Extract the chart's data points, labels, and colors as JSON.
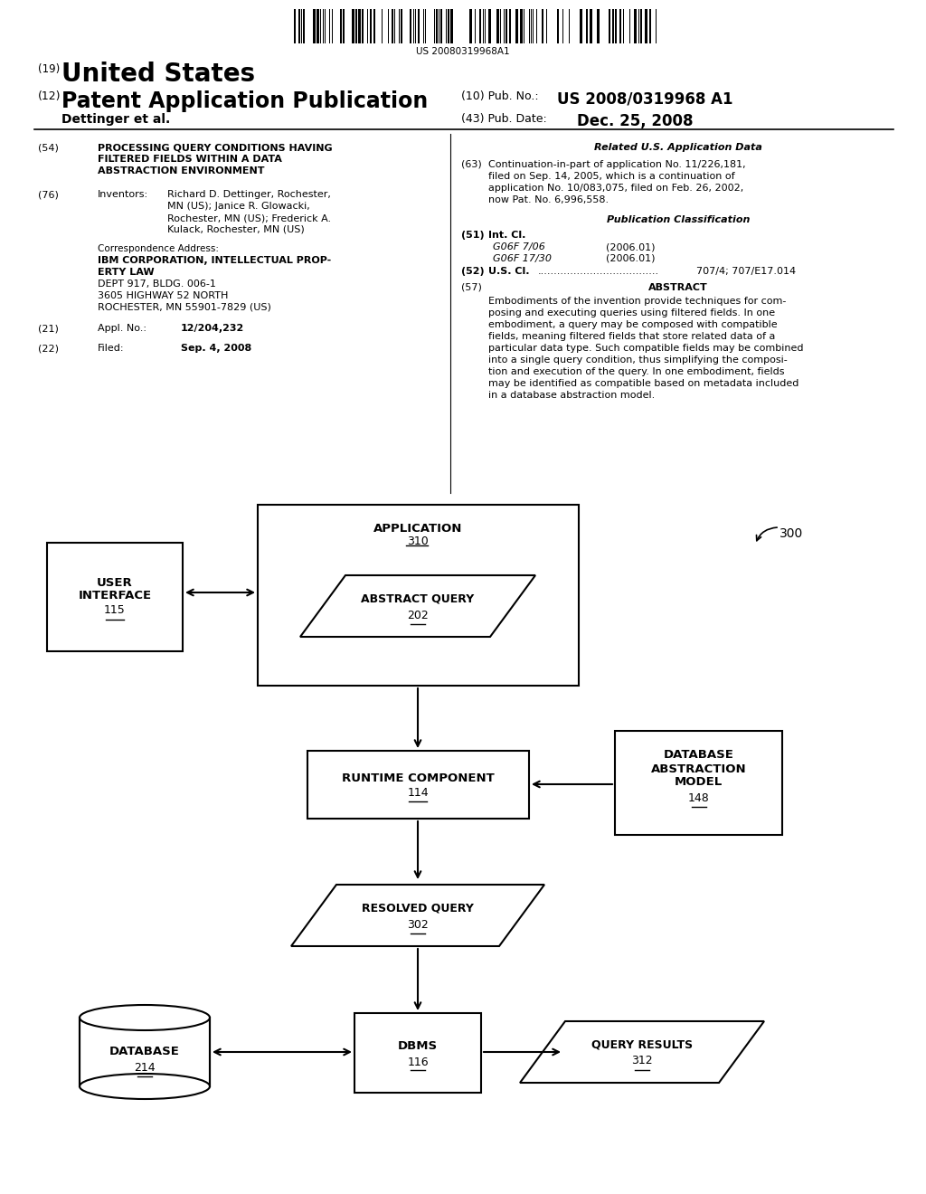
{
  "bg_color": "#ffffff",
  "barcode_text": "US 20080319968A1",
  "patent_number_label": "(19)",
  "patent_number_text": "United States",
  "app_pub_label": "(12)",
  "app_pub_text": "Patent Application Publication",
  "pub_no_label": "(10) Pub. No.:",
  "pub_no_value": "US 2008/0319968 A1",
  "author_line": "Dettinger et al.",
  "pub_date_label": "(43) Pub. Date:",
  "pub_date_value": "Dec. 25, 2008",
  "field54_label": "(54)",
  "field54_title_line1": "PROCESSING QUERY CONDITIONS HAVING",
  "field54_title_line2": "FILTERED FIELDS WITHIN A DATA",
  "field54_title_line3": "ABSTRACTION ENVIRONMENT",
  "field76_label": "(76)",
  "field76_key": "Inventors:",
  "field76_val_line1": "Richard D. Dettinger, Rochester,",
  "field76_val_line2": "MN (US); Janice R. Glowacki,",
  "field76_val_line3": "Rochester, MN (US); Frederick A.",
  "field76_val_line4": "Kulack, Rochester, MN (US)",
  "corr_label": "Correspondence Address:",
  "corr_line1": "IBM CORPORATION, INTELLECTUAL PROP-",
  "corr_line2": "ERTY LAW",
  "corr_line3": "DEPT 917, BLDG. 006-1",
  "corr_line4": "3605 HIGHWAY 52 NORTH",
  "corr_line5": "ROCHESTER, MN 55901-7829 (US)",
  "field21_label": "(21)",
  "field21_key": "Appl. No.:",
  "field21_val": "12/204,232",
  "field22_label": "(22)",
  "field22_key": "Filed:",
  "field22_val": "Sep. 4, 2008",
  "related_header": "Related U.S. Application Data",
  "field63_label": "(63)",
  "field63_line1": "Continuation-in-part of application No. 11/226,181,",
  "field63_line2": "filed on Sep. 14, 2005, which is a continuation of",
  "field63_line3": "application No. 10/083,075, filed on Feb. 26, 2002,",
  "field63_line4": "now Pat. No. 6,996,558.",
  "pub_class_header": "Publication Classification",
  "field51_label": "(51)",
  "field51_key": "Int. Cl.",
  "field51_val1": "G06F 7/06",
  "field51_val1b": "(2006.01)",
  "field51_val2": "G06F 17/30",
  "field51_val2b": "(2006.01)",
  "field52_label": "(52)",
  "field52_key": "U.S. Cl.",
  "field52_dots": ".....................................",
  "field52_val": "707/4; 707/E17.014",
  "field57_label": "(57)",
  "field57_key": "ABSTRACT",
  "field57_line1": "Embodiments of the invention provide techniques for com-",
  "field57_line2": "posing and executing queries using filtered fields. In one",
  "field57_line3": "embodiment, a query may be composed with compatible",
  "field57_line4": "fields, meaning filtered fields that store related data of a",
  "field57_line5": "particular data type. Such compatible fields may be combined",
  "field57_line6": "into a single query condition, thus simplifying the composi-",
  "field57_line7": "tion and execution of the query. In one embodiment, fields",
  "field57_line8": "may be identified as compatible based on metadata included",
  "field57_line9": "in a database abstraction model.",
  "diagram_label": "300",
  "node_app_label": "APPLICATION",
  "node_app_num": "310",
  "node_ui_line1": "USER",
  "node_ui_line2": "INTERFACE",
  "node_ui_num": "115",
  "node_aq_label": "ABSTRACT QUERY",
  "node_aq_num": "202",
  "node_rc_label": "RUNTIME COMPONENT",
  "node_rc_num": "114",
  "node_dam_line1": "DATABASE",
  "node_dam_line2": "ABSTRACTION",
  "node_dam_line3": "MODEL",
  "node_dam_num": "148",
  "node_rq_label": "RESOLVED QUERY",
  "node_rq_num": "302",
  "node_db_label": "DATABASE",
  "node_db_num": "214",
  "node_dbms_label": "DBMS",
  "node_dbms_num": "116",
  "node_qr_label": "QUERY RESULTS",
  "node_qr_num": "312"
}
